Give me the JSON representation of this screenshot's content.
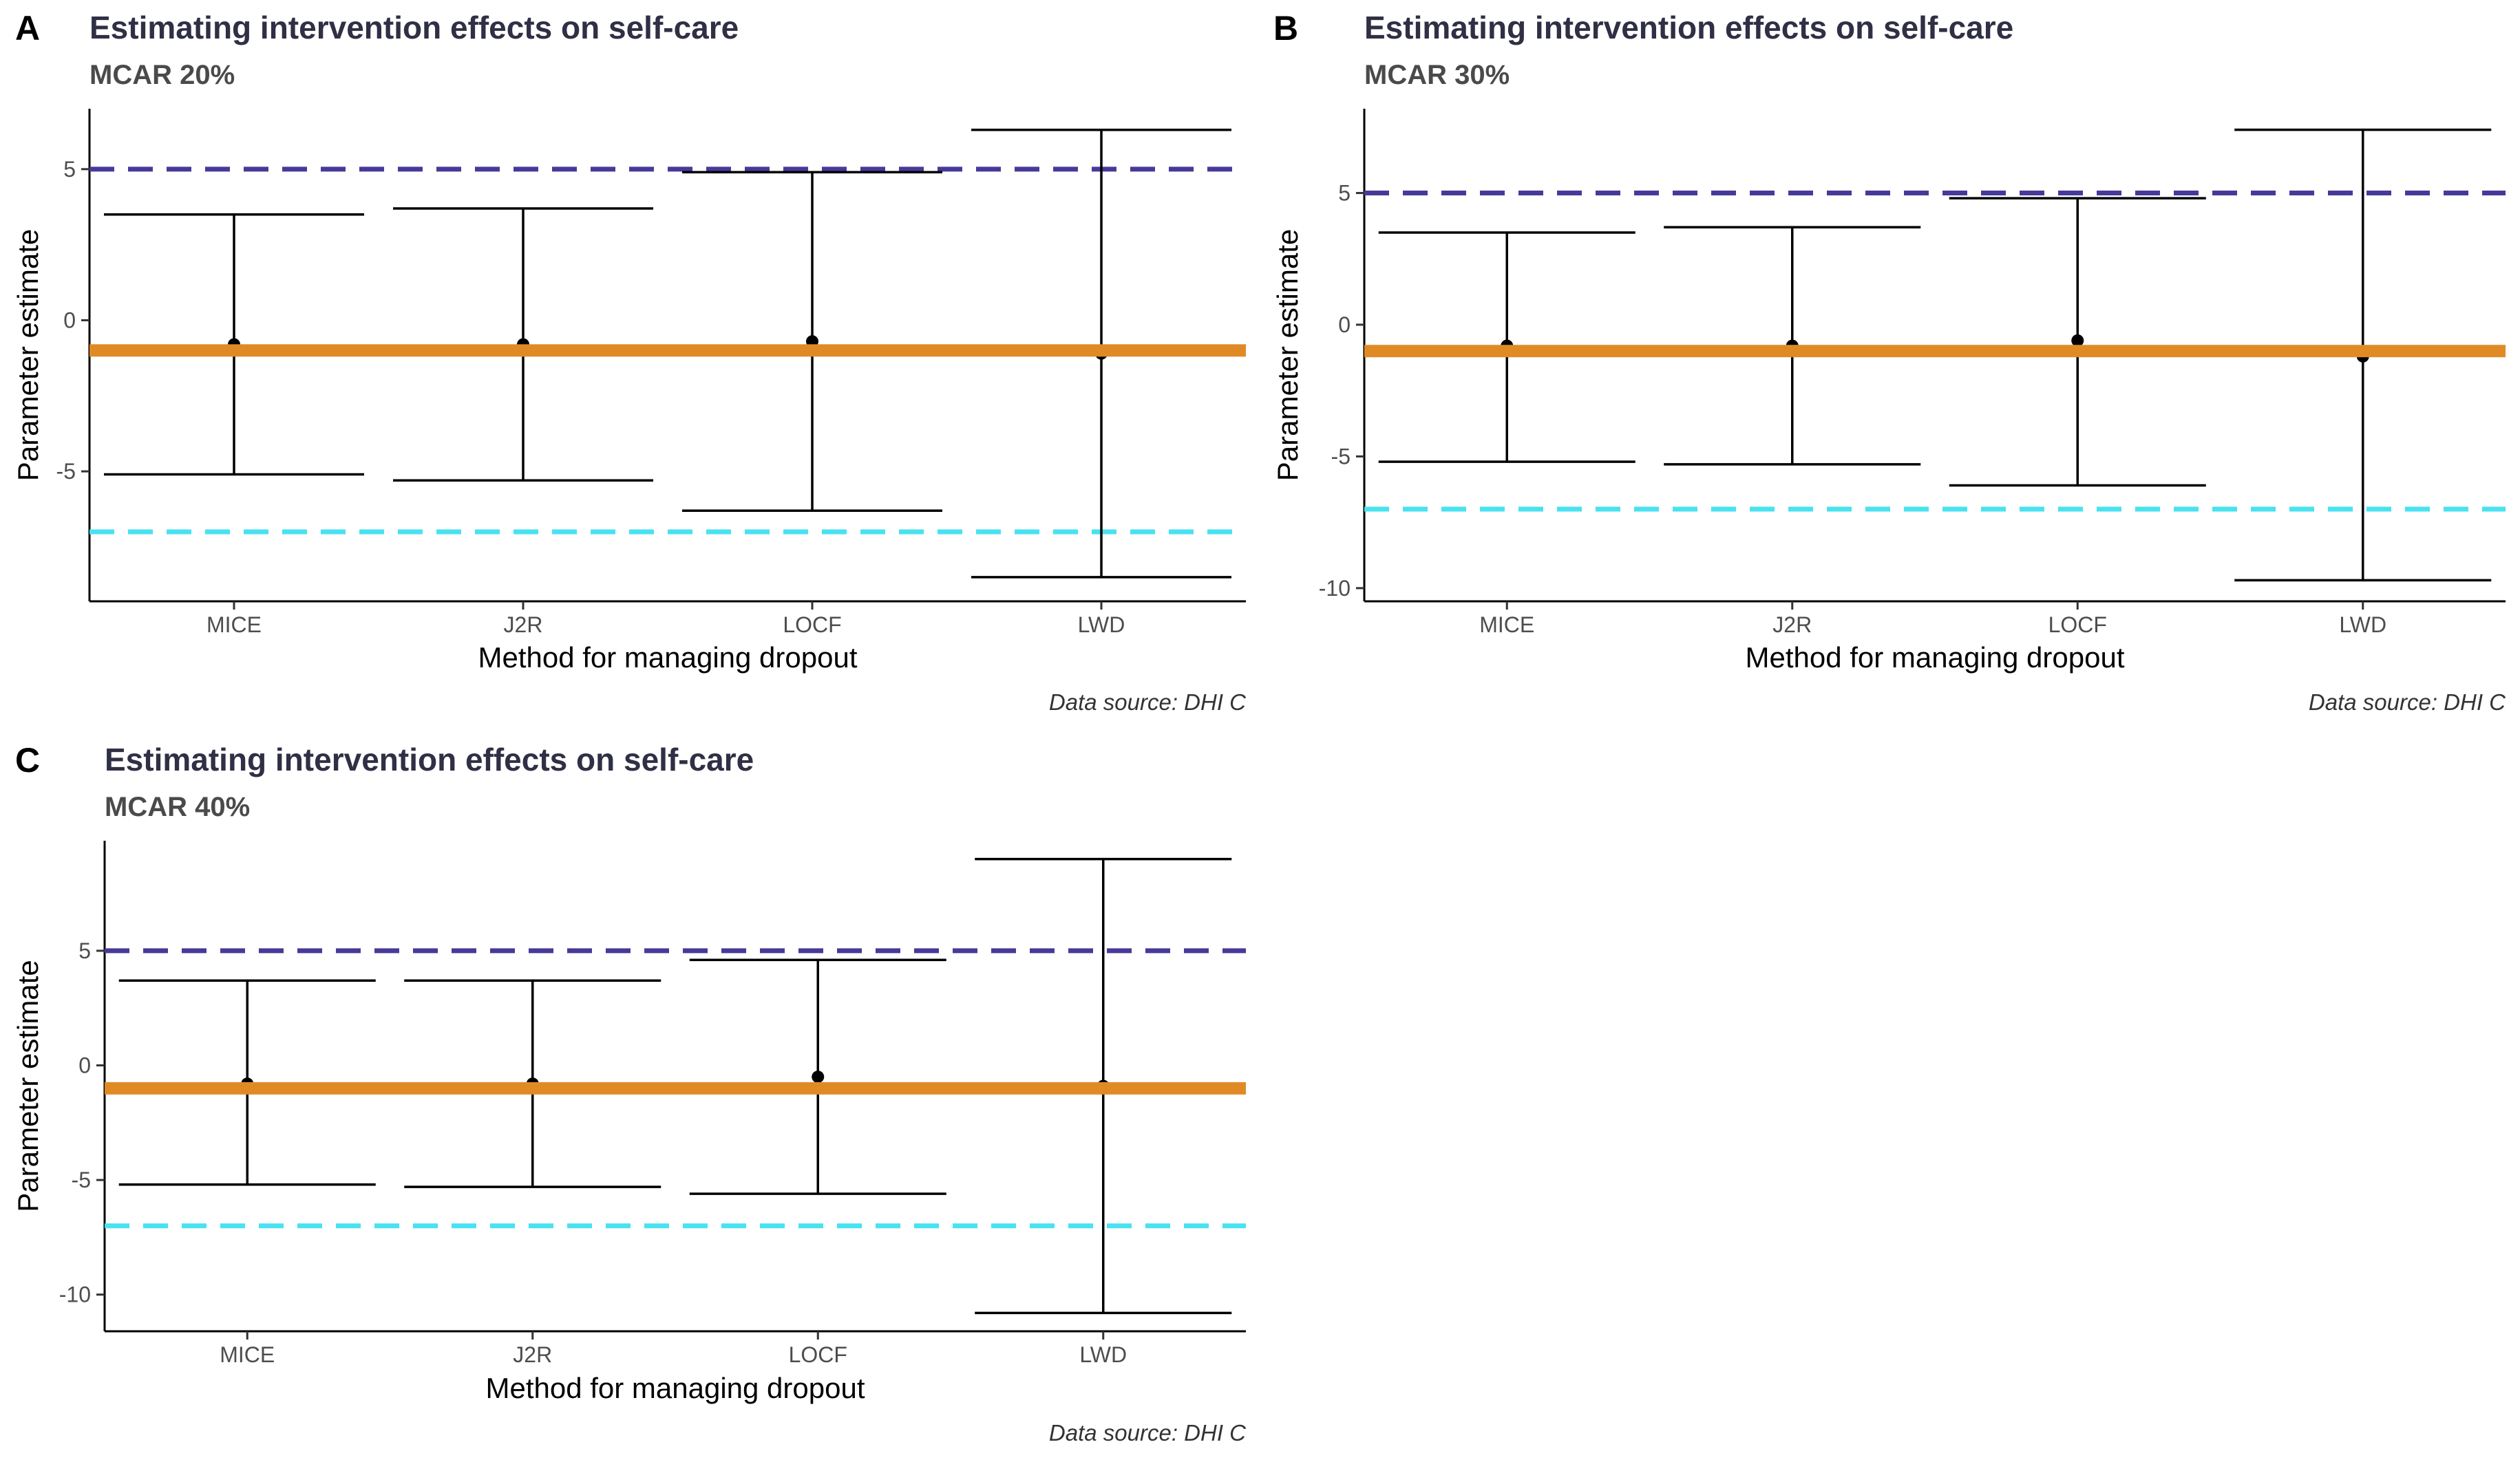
{
  "colors": {
    "estimate_line": "#e08a26",
    "upper_ref": "#463a99",
    "lower_ref": "#48e2f0",
    "errorbar": "#000000"
  },
  "chart_data": [
    {
      "panel": "A",
      "type": "errorbar",
      "title": "Estimating intervention effects on self-care",
      "subtitle": "MCAR 20%",
      "xlabel": "Method for managing dropout",
      "ylabel": "Parameter estimate",
      "caption": "Data source: DHI C",
      "categories": [
        "MICE",
        "J2R",
        "LOCF",
        "LWD"
      ],
      "estimate": [
        -0.8,
        -0.8,
        -0.7,
        -1.1
      ],
      "lower": [
        -5.1,
        -5.3,
        -6.3,
        -8.5
      ],
      "upper": [
        3.5,
        3.7,
        4.9,
        6.3
      ],
      "yticks": [
        -5,
        0,
        5
      ],
      "ylim": [
        -9.3,
        7.0
      ],
      "hlines": [
        {
          "y": 5,
          "color": "upper_ref",
          "style": "dashed"
        },
        {
          "y": -7,
          "color": "lower_ref",
          "style": "dashed"
        },
        {
          "y": -1,
          "color": "estimate_line",
          "style": "solid"
        }
      ]
    },
    {
      "panel": "B",
      "type": "errorbar",
      "title": "Estimating intervention effects on self-care",
      "subtitle": "MCAR 30%",
      "xlabel": "Method for managing dropout",
      "ylabel": "Parameter estimate",
      "caption": "Data source: DHI C",
      "categories": [
        "MICE",
        "J2R",
        "LOCF",
        "LWD"
      ],
      "estimate": [
        -0.8,
        -0.8,
        -0.6,
        -1.2
      ],
      "lower": [
        -5.2,
        -5.3,
        -6.1,
        -9.7
      ],
      "upper": [
        3.5,
        3.7,
        4.8,
        7.4
      ],
      "yticks": [
        -10,
        -5,
        0,
        5
      ],
      "ylim": [
        -10.5,
        8.2
      ],
      "hlines": [
        {
          "y": 5,
          "color": "upper_ref",
          "style": "dashed"
        },
        {
          "y": -7,
          "color": "lower_ref",
          "style": "dashed"
        },
        {
          "y": -1,
          "color": "estimate_line",
          "style": "solid"
        }
      ]
    },
    {
      "panel": "C",
      "type": "errorbar",
      "title": "Estimating intervention effects on self-care",
      "subtitle": "MCAR 40%",
      "xlabel": "Method for managing dropout",
      "ylabel": "Parameter estimate",
      "caption": "Data source: DHI C",
      "categories": [
        "MICE",
        "J2R",
        "LOCF",
        "LWD"
      ],
      "estimate": [
        -0.8,
        -0.8,
        -0.5,
        -0.9
      ],
      "lower": [
        -5.2,
        -5.3,
        -5.6,
        -10.8
      ],
      "upper": [
        3.7,
        3.7,
        4.6,
        9.0
      ],
      "yticks": [
        -10,
        -5,
        0,
        5
      ],
      "ylim": [
        -11.6,
        9.8
      ],
      "hlines": [
        {
          "y": 5,
          "color": "upper_ref",
          "style": "dashed"
        },
        {
          "y": -7,
          "color": "lower_ref",
          "style": "dashed"
        },
        {
          "y": -1,
          "color": "estimate_line",
          "style": "solid"
        }
      ]
    }
  ]
}
